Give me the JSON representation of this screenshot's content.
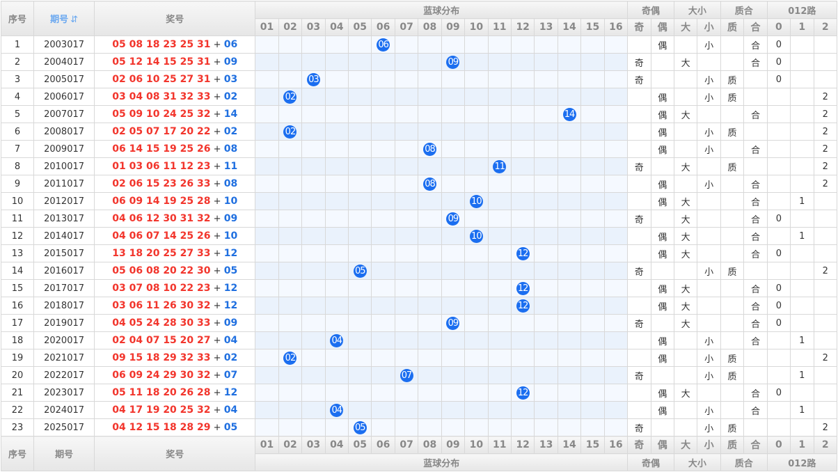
{
  "headers": {
    "seq": "序号",
    "issue": "期号",
    "sort_icon": "sort-icon",
    "prize": "奖号",
    "blue_dist": "蓝球分布",
    "oe": "奇偶",
    "bs": "大小",
    "pc": "质合",
    "road": "012路"
  },
  "blue_cols": [
    "01",
    "02",
    "03",
    "04",
    "05",
    "06",
    "07",
    "08",
    "09",
    "10",
    "11",
    "12",
    "13",
    "14",
    "15",
    "16"
  ],
  "right_cols": [
    "奇",
    "偶",
    "大",
    "小",
    "质",
    "合",
    "0",
    "1",
    "2"
  ],
  "rows": [
    [
      "1",
      "2003017",
      "05 08 18 23 25 31",
      "06",
      "偶",
      "小",
      "合",
      "0"
    ],
    [
      "2",
      "2004017",
      "05 12 14 15 25 31",
      "09",
      "奇",
      "大",
      "合",
      "0"
    ],
    [
      "3",
      "2005017",
      "02 06 10 25 27 31",
      "03",
      "奇",
      "小",
      "质",
      "0"
    ],
    [
      "4",
      "2006017",
      "03 04 08 31 32 33",
      "02",
      "偶",
      "小",
      "质",
      "2"
    ],
    [
      "5",
      "2007017",
      "05 09 10 24 25 32",
      "14",
      "偶",
      "大",
      "合",
      "2"
    ],
    [
      "6",
      "2008017",
      "02 05 07 17 20 22",
      "02",
      "偶",
      "小",
      "质",
      "2"
    ],
    [
      "7",
      "2009017",
      "06 14 15 19 25 26",
      "08",
      "偶",
      "小",
      "合",
      "2"
    ],
    [
      "8",
      "2010017",
      "01 03 06 11 12 23",
      "11",
      "奇",
      "大",
      "质",
      "2"
    ],
    [
      "9",
      "2011017",
      "02 06 15 23 26 33",
      "08",
      "偶",
      "小",
      "合",
      "2"
    ],
    [
      "10",
      "2012017",
      "06 09 14 19 25 28",
      "10",
      "偶",
      "大",
      "合",
      "1"
    ],
    [
      "11",
      "2013017",
      "04 06 12 30 31 32",
      "09",
      "奇",
      "大",
      "合",
      "0"
    ],
    [
      "12",
      "2014017",
      "04 06 07 14 25 26",
      "10",
      "偶",
      "大",
      "合",
      "1"
    ],
    [
      "13",
      "2015017",
      "13 18 20 25 27 33",
      "12",
      "偶",
      "大",
      "合",
      "0"
    ],
    [
      "14",
      "2016017",
      "05 06 08 20 22 30",
      "05",
      "奇",
      "小",
      "质",
      "2"
    ],
    [
      "15",
      "2017017",
      "03 07 08 10 22 23",
      "12",
      "偶",
      "大",
      "合",
      "0"
    ],
    [
      "16",
      "2018017",
      "03 06 11 26 30 32",
      "12",
      "偶",
      "大",
      "合",
      "0"
    ],
    [
      "17",
      "2019017",
      "04 05 24 28 30 33",
      "09",
      "奇",
      "大",
      "合",
      "0"
    ],
    [
      "18",
      "2020017",
      "02 04 07 15 20 27",
      "04",
      "偶",
      "小",
      "合",
      "1"
    ],
    [
      "19",
      "2021017",
      "09 15 18 29 32 33",
      "02",
      "偶",
      "小",
      "质",
      "2"
    ],
    [
      "20",
      "2022017",
      "06 09 24 29 30 32",
      "07",
      "奇",
      "小",
      "质",
      "1"
    ],
    [
      "21",
      "2023017",
      "05 11 18 20 26 28",
      "12",
      "偶",
      "大",
      "合",
      "0"
    ],
    [
      "22",
      "2024017",
      "04 17 19 20 25 32",
      "04",
      "偶",
      "小",
      "合",
      "1"
    ],
    [
      "23",
      "2025017",
      "04 12 15 18 28 29",
      "05",
      "奇",
      "小",
      "质",
      "2"
    ]
  ],
  "plus": "+",
  "colors": {
    "red": "#f2352c",
    "blue": "#1f6fe0",
    "ball": "#1b6ef0"
  }
}
